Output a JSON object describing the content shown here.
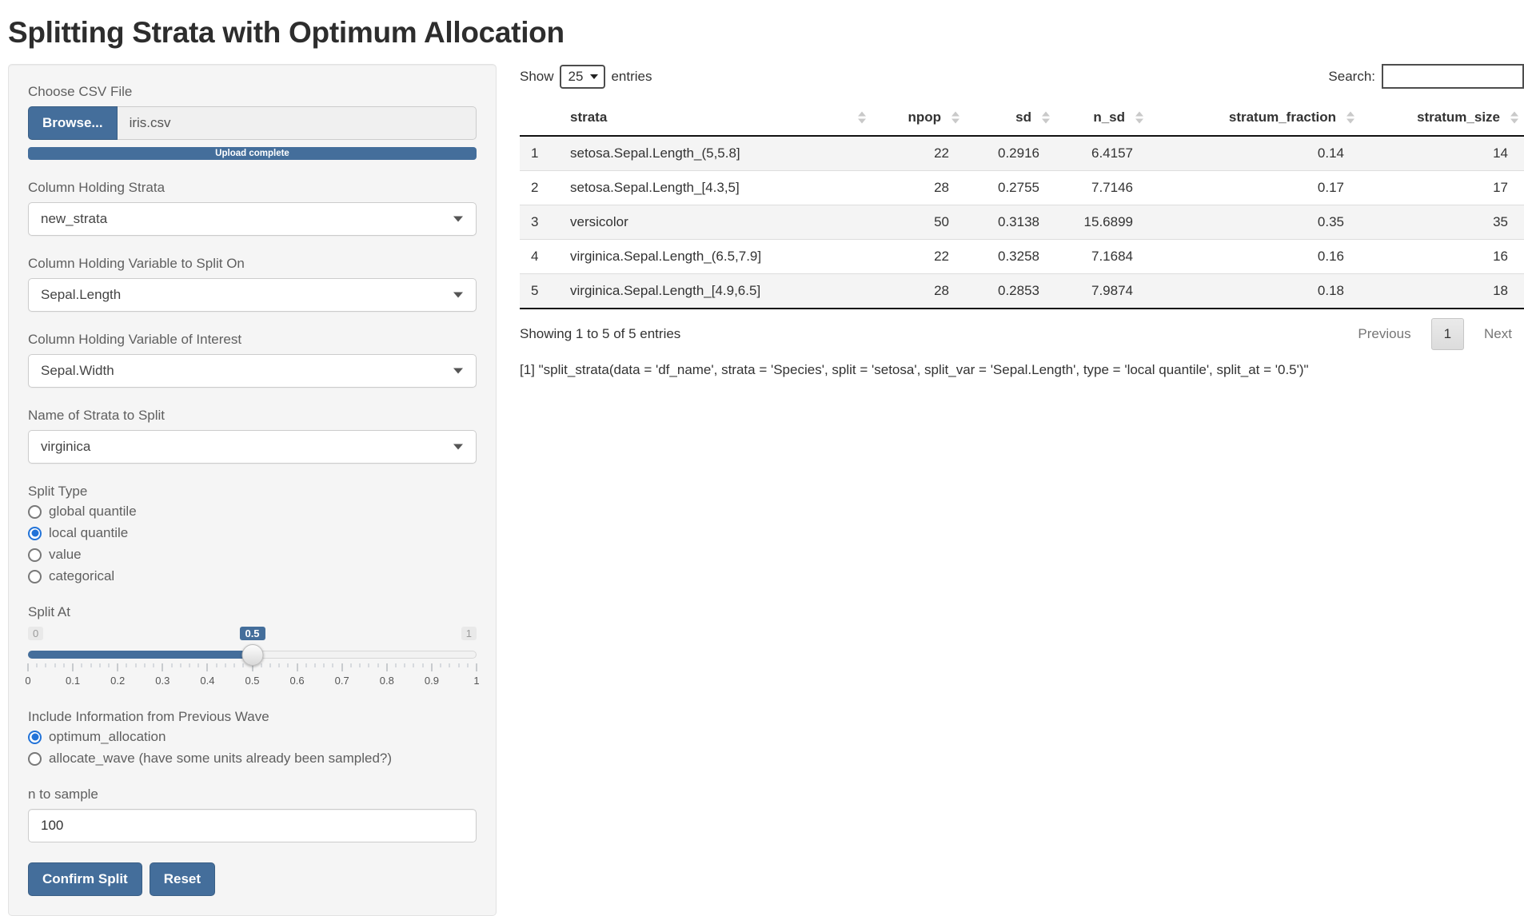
{
  "page": {
    "title": "Splitting Strata with Optimum Allocation"
  },
  "colors": {
    "primary": "#446e9b",
    "radio_selected": "#2273d8",
    "stripe": "#f4f4f4"
  },
  "sidebar": {
    "file_label": "Choose CSV File",
    "browse_label": "Browse...",
    "file_name": "iris.csv",
    "upload_status": "Upload complete",
    "selects": [
      {
        "label": "Column Holding Strata",
        "value": "new_strata"
      },
      {
        "label": "Column Holding Variable to Split On",
        "value": "Sepal.Length"
      },
      {
        "label": "Column Holding Variable of Interest",
        "value": "Sepal.Width"
      },
      {
        "label": "Name of Strata to Split",
        "value": "virginica"
      }
    ],
    "split_type": {
      "label": "Split Type",
      "options": [
        "global quantile",
        "local quantile",
        "value",
        "categorical"
      ],
      "selected": "local quantile"
    },
    "slider": {
      "label": "Split At",
      "min": "0",
      "max": "1",
      "value": "0.5",
      "value_percent": 50,
      "tick_labels": [
        "0",
        "0.1",
        "0.2",
        "0.3",
        "0.4",
        "0.5",
        "0.6",
        "0.7",
        "0.8",
        "0.9",
        "1"
      ]
    },
    "wave": {
      "label": "Include Information from Previous Wave",
      "options": [
        "optimum_allocation",
        "allocate_wave (have some units already been sampled?)"
      ],
      "selected": "optimum_allocation"
    },
    "n_sample": {
      "label": "n to sample",
      "value": "100"
    },
    "confirm_label": "Confirm Split",
    "reset_label": "Reset"
  },
  "table": {
    "show_label": "Show",
    "page_length": "25",
    "entries_label": "entries",
    "search_label": "Search:",
    "search_value": "",
    "columns": [
      "strata",
      "npop",
      "sd",
      "n_sd",
      "stratum_fraction",
      "stratum_size"
    ],
    "rows": [
      [
        "1",
        "setosa.Sepal.Length_(5,5.8]",
        "22",
        "0.2916",
        "6.4157",
        "0.14",
        "14"
      ],
      [
        "2",
        "setosa.Sepal.Length_[4.3,5]",
        "28",
        "0.2755",
        "7.7146",
        "0.17",
        "17"
      ],
      [
        "3",
        "versicolor",
        "50",
        "0.3138",
        "15.6899",
        "0.35",
        "35"
      ],
      [
        "4",
        "virginica.Sepal.Length_(6.5,7.9]",
        "22",
        "0.3258",
        "7.1684",
        "0.16",
        "16"
      ],
      [
        "5",
        "virginica.Sepal.Length_[4.9,6.5]",
        "28",
        "0.2853",
        "7.9874",
        "0.18",
        "18"
      ]
    ],
    "info": "Showing 1 to 5 of 5 entries",
    "pagination": {
      "previous": "Previous",
      "current": "1",
      "next": "Next"
    }
  },
  "output": {
    "code": "[1] \"split_strata(data = 'df_name', strata = 'Species', split = 'setosa', split_var = 'Sepal.Length', type = 'local quantile', split_at = '0.5')\""
  }
}
